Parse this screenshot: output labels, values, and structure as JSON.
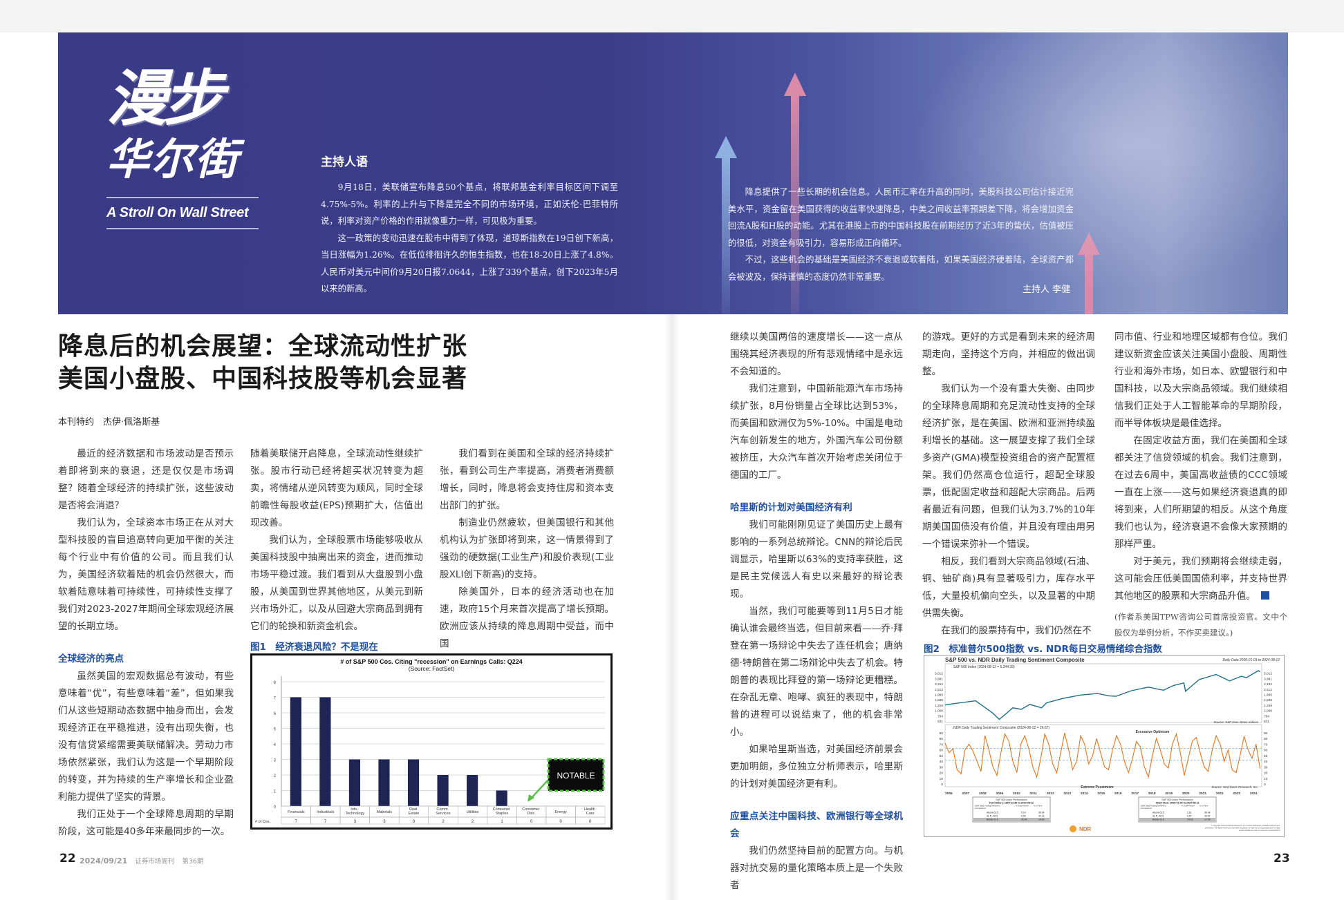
{
  "banner": {
    "logo_cn_1": "漫步",
    "logo_cn_2": "华尔街",
    "logo_en": "A Stroll On Wall Street",
    "host_heading": "主持人语",
    "host_left": [
      "9月18日，美联储宣布降息50个基点，将联邦基金利率目标区间下调至4.75%-5%。利率的上升与下降是完全不同的市场环境，正如沃伦·巴菲特所说，利率对资产价格的作用就像重力一样，可见极为重要。",
      "这一政策的变动迅速在股市中得到了体现，道琼斯指数在19日创下新高，当日涨幅为1.26%。在低位徘徊许久的恒生指数，也在18-20日上涨了4.8%。人民币对美元中间价9月20日报7.0644，上涨了339个基点，创下2023年5月以来的新高。"
    ],
    "host_right": [
      "降息提供了一些长期的机会信息。人民币汇率在升高的同时，美股科技公司估计接近完美水平，资金留在美国获得的收益率快速降息，中美之间收益率预期差下降，将会增加资金回流A股和H股的动能。尤其在港股上市的中国科技股在前期经历了近3年的蛰伏，估值被压的很低，对资金有吸引力，容易形成正向循环。",
      "不过，这些机会的基础是美国经济不衰退或软着陆，如果美国经济硬着陆，全球资产都会被波及，保持谨慎的态度仍然非常重要。"
    ],
    "host_signature": "主持人 李健"
  },
  "article": {
    "title_line1": "降息后的机会展望：全球流动性扩张",
    "title_line2": "美国小盘股、中国科技股等机会显著",
    "byline": "本刊特约　杰伊·佩洛斯基",
    "columns": [
      [
        {
          "t": "p",
          "text": "最近的经济数据和市场波动是否预示着即将到来的衰退，还是仅仅是市场调整？随着全球经济的持续扩张，这些波动是否将会消退？"
        },
        {
          "t": "p",
          "text": "我们认为，全球资本市场正在从对大型科技股的盲目追高转向更加平衡的关注每个行业中有价值的公司。而且我们认为，美国经济软着陆的机会仍然很大，而软着陆意味着可持续性，可持续性支撑了我们对2023-2027年期间全球宏观经济展望的长期立场。"
        },
        {
          "t": "h",
          "text": "全球经济的亮点"
        },
        {
          "t": "p",
          "text": "虽然美国的宏观数据总有波动，有些意味着“优”，有些意味着“差”，但如果我们从这些短期动态数据中抽身而出，会发现经济正在平稳推进，没有出现失衡，也没有信贷紧缩需要美联储解决。劳动力市场依然紧张，我们认为这是一个早期阶段的转变，并为持续的生产率增长和企业盈利能力提供了坚实的背景。"
        },
        {
          "t": "p",
          "text": "我们正处于一个全球降息周期的早期阶段，这可能是40多年来最同步的一次。"
        }
      ],
      [
        {
          "t": "c",
          "text": "随着美联储开启降息，全球流动性继续扩张。股市行动已经将超买状况转变为超卖，将情绪从逆风转变为顺风，同时全球前瞻性每股收益(EPS)预期扩大，估值出现改善。"
        },
        {
          "t": "p",
          "text": "我们认为，全球股票市场能够吸收从美国科技股中抽离出来的资金，进而推动市场平稳过渡。我们看到从大盘股到小盘股，从美国到世界其他地区，从美元到新兴市场外汇，以及从回避大宗商品到拥有它们的轮换和新资金机会。"
        }
      ],
      [
        {
          "t": "p",
          "text": "我们看到在美国和全球的经济持续扩张，看到公司生产率提高，消费者消费额增长，同时，降息将会支持住房和资本支出部门的扩张。"
        },
        {
          "t": "p",
          "text": "制造业仍然疲软，但美国银行和其他机构认为扩张即将到来，这一情景得到了强劲的硬数据(工业生产)和股价表现(工业股XLI创下新高)的支持。"
        },
        {
          "t": "p",
          "text": "除美国外，日本的经济活动也在加速，政府15个月来首次提高了增长预期。欧洲应该从持续的降息周期中受益，而中国"
        }
      ],
      [
        {
          "t": "c",
          "text": "继续以美国两倍的速度增长——这一点从围绕其经济表现的所有悲观情绪中是永远不会知道的。"
        },
        {
          "t": "p",
          "text": "我们注意到，中国新能源汽车市场持续扩张，8月份销量占全球比达到53%，而美国和欧洲仅为5%-10%。中国是电动汽车创新发生的地方，外国汽车公司份额被挤压，大众汽车首次开始考虑关闭位于德国的工厂。"
        },
        {
          "t": "h",
          "text": "哈里斯的计划对美国经济有利"
        },
        {
          "t": "p",
          "text": "我们可能刚刚见证了美国历史上最有影响的一系列总统辩论。CNN的辩论后民调显示，哈里斯以63%的支持率获胜，这是民主党候选人有史以来最好的辩论表现。"
        },
        {
          "t": "p",
          "text": "当然，我们可能要等到11月5日才能确认谁会最终当选，但目前来看——乔·拜登在第一场辩论中失去了连任机会；唐纳德·特朗普在第二场辩论中失去了机会。特朗普的表现比拜登的第一场辩论更糟糕。在杂乱无章、咆哮、疯狂的表现中，特朗普的进程可以说结束了，他的机会非常小。"
        },
        {
          "t": "p",
          "text": "如果哈里斯当选，对美国经济前景会更加明朗，多位独立分析师表示，哈里斯的计划对美国经济更有利。"
        },
        {
          "t": "h",
          "text": "应重点关注中国科技、欧洲银行等全球机会"
        },
        {
          "t": "p",
          "text": "我们仍然坚持目前的配置方向。与机器对抗交易的量化策略本质上是一个失败者"
        }
      ],
      [
        {
          "t": "c",
          "text": "的游戏。更好的方式是看到未来的经济周期走向，坚持这个方向，并相应的做出调整。"
        },
        {
          "t": "p",
          "text": "我们认为一个没有重大失衡、由同步的全球降息周期和充足流动性支持的全球经济扩张，是在美国、欧洲和亚洲持续盈利增长的基础。这一展望支撑了我们全球多资产(GMA)模型投资组合的资产配置框架。我们仍然高仓位运行，超配全球股票，低配固定收益和超配大宗商品。后两者最近有问题，但我们认为3.7%的10年期美国国债没有价值，并且没有理由用另一个错误来弥补一个错误。"
        },
        {
          "t": "p",
          "text": "相反，我们看到大宗商品领域(石油、铜、铀矿商)具有显著吸引力，库存水平低，大量投机偏向空头，以及显著的中期供需失衡。"
        },
        {
          "t": "p",
          "text": "在我们的股票持有中，我们仍然在不"
        }
      ],
      [
        {
          "t": "c",
          "text": "同市值、行业和地理区域都有仓位。我们建议新资金应该关注美国小盘股、周期性行业和海外市场，如日本、欧盟银行和中国科技，以及大宗商品领域。我们继续相信我们正处于人工智能革命的早期阶段，而半导体板块是最佳选择。"
        },
        {
          "t": "p",
          "text": "在固定收益方面，我们在美国和全球都关注了信贷领域的机会。我们注意到，在过去6周中，美国高收益债的CCC领域一直在上涨——这与如果经济衰退真的即将到来，人们所期望的相反。从这个角度我们也认为，经济衰退不会像大家预期的那样严重。"
        },
        {
          "t": "e",
          "text": "对于美元，我们预期将会继续走弱，这可能会压低美国国债利率，并支持世界其他地区的股票和大宗商品升值。"
        },
        {
          "t": "n",
          "text": "(作者系美国TPW咨询公司首席投资官。文中个股仅为举例分析，不作买卖建议。)"
        }
      ]
    ]
  },
  "figures": {
    "fig1_caption": "图1　经济衰退风险？不是现在",
    "fig2_caption": "图2　标准普尔500指数 vs. NDR每日交易情绪综合指数"
  },
  "chart_data": [
    {
      "type": "bar",
      "title": "# of S&P 500 Cos. Citing \"recession\" on Earnings Calls: Q224",
      "subtitle": "(Source: FactSet)",
      "categories": [
        "Financials",
        "Industrials",
        "Info. Technology",
        "Materials",
        "Real Estate",
        "Comm. Services",
        "Utilities",
        "Consumer Staples",
        "Consumer Disc.",
        "Energy",
        "Health Care"
      ],
      "values": [
        7,
        7,
        3,
        3,
        3,
        2,
        2,
        1,
        0,
        0,
        0
      ],
      "table_row_label": "# of Cos.",
      "annotation": "NOTABLE",
      "ylim": [
        0,
        8
      ],
      "yticks": [
        0,
        1,
        2,
        3,
        4,
        5,
        6,
        7,
        8
      ],
      "grid": true,
      "bar_color": "#1e2453",
      "annotation_color": "#5cbd4a"
    },
    {
      "type": "line",
      "title": "S&P 500 vs. NDR Daily Trading Sentiment Composite",
      "subtitle": "Daily Data 2006-01-03 to 2024-08-12",
      "top_panel": {
        "legend": "S&P 500 Index (2024-08-12 = 5,344.39)",
        "source": "Source: S&P Dow Jones Indices",
        "scale": "log",
        "yticks": [
          "631",
          "794",
          "1,000",
          "1,259",
          "1,585",
          "1,995",
          "2,512",
          "3,162",
          "3,981",
          "5,012"
        ],
        "color": "#1f6f86",
        "x": [
          2006,
          2007,
          2007.8,
          2008.8,
          2009.2,
          2010,
          2010.5,
          2011,
          2011.7,
          2012,
          2013,
          2014,
          2015,
          2015.7,
          2016.1,
          2017,
          2018,
          2018.9,
          2019.5,
          2020.1,
          2020.2,
          2021,
          2022,
          2022.8,
          2023.5,
          2023.8,
          2024.5,
          2024.6
        ],
        "y": [
          1270,
          1410,
          1520,
          900,
          680,
          1120,
          1050,
          1300,
          1120,
          1400,
          1700,
          1950,
          2080,
          1880,
          1850,
          2350,
          2750,
          2400,
          2950,
          3300,
          2300,
          3800,
          4750,
          3600,
          4400,
          4150,
          5600,
          5344
        ]
      },
      "bottom_panel": {
        "legend": "NDR Daily Trading Sentiment Composite (2024-08-12 = 26.67)",
        "upper_label": "Excessive Optimism",
        "lower_label": "Extreme Pessimism",
        "source": "Source: Ned Davis Research, Inc.",
        "ylim": [
          0,
          90
        ],
        "yticks": [
          0,
          10,
          20,
          30,
          40,
          50,
          60,
          70,
          80,
          90
        ],
        "thresholds": [
          62.5,
          41.5
        ],
        "color": "#e2741f",
        "values": [
          72,
          55,
          62,
          25,
          18,
          60,
          70,
          58,
          40,
          22,
          85,
          60,
          30,
          15,
          55,
          88,
          75,
          40,
          20,
          70,
          85,
          62,
          30,
          12,
          45,
          88,
          70,
          35,
          20,
          55,
          90,
          60,
          25,
          40,
          85,
          70,
          35,
          50,
          80,
          55,
          30,
          25,
          60,
          85,
          70,
          40,
          20,
          45,
          75,
          65,
          30,
          12,
          50,
          80,
          60,
          35,
          28,
          70,
          88,
          55,
          15,
          45,
          75,
          82,
          55,
          30,
          22,
          60,
          85,
          70,
          40,
          60,
          25,
          20,
          50,
          84,
          60,
          45,
          70,
          27
        ]
      },
      "x_ticks": [
        "2006",
        "2007",
        "2008",
        "2009",
        "2010",
        "2011",
        "2012",
        "2013",
        "2014",
        "2015",
        "2016",
        "2017",
        "2018",
        "2019",
        "2020",
        "2021",
        "2022",
        "2023",
        "2024"
      ],
      "tables": [
        {
          "title": "S&P 500 Index Performance",
          "period": "Full History: 1994-12-30 to 2024-08-12",
          "headers": [
            "NDR Daily Trading Sentiment Composite Is",
            "% Gain/Annum",
            "% of Time"
          ],
          "rows": [
            [
              "Above 62.5",
              "5.14",
              "38.04"
            ],
            [
              "41.5 - 62.5",
              "8.06",
              "44.13"
            ],
            [
              "Below 41.5",
              "26.93",
              "16.83"
            ]
          ]
        },
        {
          "title": "S&P 500 Index Performance",
          "period": "Chart View: 2006-01-03 to 2024-08-12",
          "headers": [
            "NDR Daily Trading Sentiment Composite Is",
            "% Gain/Annum",
            "% of Time"
          ],
          "rows": [
            [
              "Above 62.5",
              "3.61",
              "38.48"
            ],
            [
              "41.5 - 62.5",
              "5.57",
              "43.67"
            ],
            [
              "Below 41.5",
              "24.61",
              "17.93"
            ]
          ]
        }
      ],
      "logo": "NDR",
      "copyright": "© Copyright 2024 Ned Davis Research, Inc. Further distribution prohibited without prior permission. All Rights Reserved. See NDR Disclaimer at www.ndr.com/copyright.html For data vendor disclaimers refer to www.ndr.com/vendorinfo/"
    }
  ],
  "footer": {
    "left_page": "22",
    "date": "2024/09/21",
    "magazine": "证券市场周刊",
    "issue": "第36期",
    "right_page": "23"
  }
}
